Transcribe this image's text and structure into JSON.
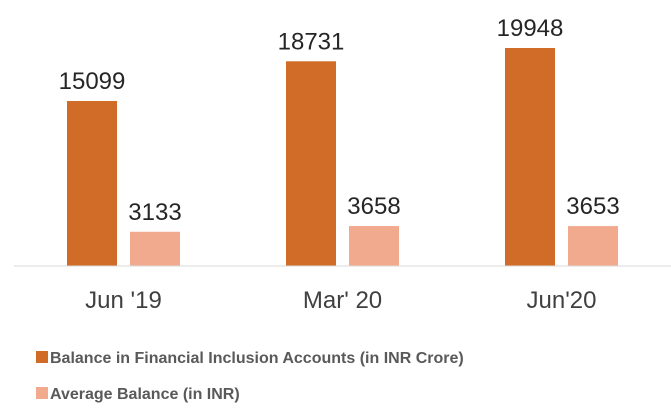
{
  "chart_data": {
    "type": "bar",
    "categories": [
      "Jun '19",
      "Mar' 20",
      "Jun'20"
    ],
    "series": [
      {
        "name": "Balance in Financial Inclusion Accounts (in INR Crore)",
        "color": "#d06b28",
        "values": [
          15099,
          18731,
          19948
        ]
      },
      {
        "name": "Average Balance (in INR)",
        "color": "#f2aa8e",
        "values": [
          3133,
          3658,
          3653
        ]
      }
    ],
    "legend": "bottom"
  }
}
